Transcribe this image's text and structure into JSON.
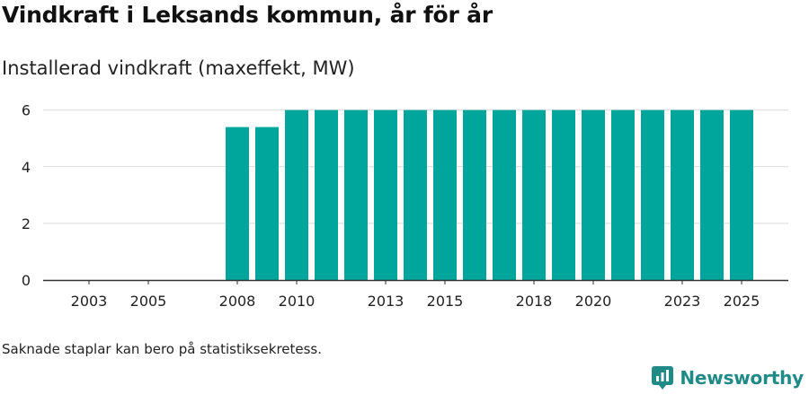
{
  "title": "Vindkraft i Leksands kommun, år för år",
  "subtitle": "Installerad vindkraft (maxeffekt, MW)",
  "footnote": "Saknade staplar kan bero på statistiksekretess.",
  "brand": {
    "name": "Newsworthy",
    "icon": "newsworthy-logo-icon",
    "color": "#1f8a86"
  },
  "colors": {
    "bar": "#00a59b",
    "grid": "#d9d9d9",
    "axis": "#333333"
  },
  "chart_data": {
    "type": "bar",
    "title": "Vindkraft i Leksands kommun, år för år",
    "ylabel": "Installerad vindkraft (maxeffekt, MW)",
    "xlabel": "",
    "categories": [
      "2003",
      "2004",
      "2005",
      "2006",
      "2007",
      "2008",
      "2009",
      "2010",
      "2011",
      "2012",
      "2013",
      "2014",
      "2015",
      "2016",
      "2017",
      "2018",
      "2019",
      "2020",
      "2021",
      "2022",
      "2023",
      "2024",
      "2025"
    ],
    "values": [
      0,
      0,
      0,
      0,
      0,
      5.4,
      5.4,
      6,
      6,
      6,
      6,
      6,
      6,
      6,
      6,
      6,
      6,
      6,
      6,
      6,
      6,
      6,
      6
    ],
    "x_tick_labels": [
      "2003",
      "2005",
      "2008",
      "2010",
      "2013",
      "2015",
      "2018",
      "2020",
      "2023",
      "2025"
    ],
    "y_ticks": [
      "0",
      "2",
      "4",
      "6"
    ],
    "ylim": [
      0,
      6.4
    ],
    "grid": true
  }
}
